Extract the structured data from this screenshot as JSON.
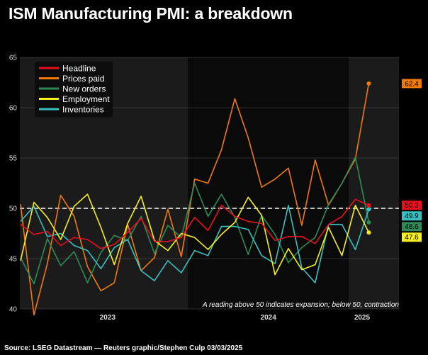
{
  "title": "ISM Manufacturing PMI: a breakdown",
  "source": "Source: LSEG Datastream — Reuters graphic/Stephen Culp 03/03/2025",
  "chart_data": {
    "type": "line",
    "title": "ISM Manufacturing PMI: a breakdown",
    "x": [
      "2022-12",
      "2023-01",
      "2023-02",
      "2023-03",
      "2023-04",
      "2023-05",
      "2023-06",
      "2023-07",
      "2023-08",
      "2023-09",
      "2023-10",
      "2023-11",
      "2023-12",
      "2024-01",
      "2024-02",
      "2024-03",
      "2024-04",
      "2024-05",
      "2024-06",
      "2024-07",
      "2024-08",
      "2024-09",
      "2024-10",
      "2024-11",
      "2024-12",
      "2025-01",
      "2025-02"
    ],
    "xtick_labels": [
      "2023",
      "2024",
      "2025"
    ],
    "ylim": [
      40,
      65
    ],
    "yticks": [
      40,
      45,
      50,
      55,
      60,
      65
    ],
    "reference_line": 50,
    "grid": true,
    "legend_position": "top-left",
    "annotation": "A reading above 50 indicates expansion; below 50, contraction",
    "series": [
      {
        "name": "Headline",
        "color": "#e8101e",
        "values": [
          48.4,
          47.4,
          47.7,
          46.3,
          47.1,
          46.9,
          46.0,
          46.4,
          47.6,
          49.0,
          46.7,
          46.7,
          47.1,
          49.1,
          47.8,
          50.3,
          49.2,
          48.7,
          48.5,
          46.8,
          47.2,
          47.2,
          46.5,
          48.4,
          49.2,
          50.9,
          50.3
        ]
      },
      {
        "name": "Prices paid",
        "color": "#f07a0a",
        "values": [
          50.4,
          39.4,
          44.5,
          51.3,
          49.2,
          44.2,
          41.8,
          42.6,
          48.4,
          43.8,
          45.1,
          49.9,
          45.2,
          52.9,
          52.5,
          55.8,
          60.9,
          57.0,
          52.1,
          52.9,
          54.0,
          48.3,
          54.8,
          50.3,
          52.5,
          54.9,
          62.4
        ]
      },
      {
        "name": "New orders",
        "color": "#2e8b57",
        "values": [
          45.1,
          42.5,
          47.0,
          44.3,
          45.7,
          42.6,
          45.6,
          47.3,
          46.8,
          49.2,
          45.5,
          48.3,
          47.1,
          52.5,
          49.2,
          51.4,
          49.1,
          45.4,
          49.3,
          47.4,
          44.6,
          46.1,
          47.1,
          50.4,
          52.5,
          55.1,
          48.6
        ]
      },
      {
        "name": "Employment",
        "color": "#f5f01e",
        "values": [
          44.8,
          50.6,
          49.1,
          46.9,
          50.2,
          51.4,
          48.1,
          44.4,
          48.5,
          51.2,
          46.8,
          45.8,
          47.5,
          47.1,
          45.9,
          47.4,
          48.6,
          51.1,
          49.3,
          43.4,
          46.0,
          43.9,
          44.4,
          48.1,
          45.3,
          50.3,
          47.6
        ]
      },
      {
        "name": "Inventories",
        "color": "#38c0c0",
        "values": [
          48.7,
          50.2,
          47.2,
          47.5,
          46.3,
          45.8,
          44.0,
          46.1,
          46.9,
          43.8,
          42.8,
          44.8,
          43.6,
          45.8,
          45.3,
          48.2,
          48.2,
          47.9,
          45.3,
          44.5,
          50.3,
          44.1,
          42.6,
          48.4,
          48.4,
          45.9,
          49.9
        ]
      }
    ],
    "end_labels": [
      {
        "series": "Prices paid",
        "text": "62.4",
        "value": 62.4
      },
      {
        "series": "Headline",
        "text": "50.3",
        "value": 50.3
      },
      {
        "series": "Inventories",
        "text": "49.9",
        "value": 49.9
      },
      {
        "series": "New orders",
        "text": "48.6",
        "value": 48.6
      },
      {
        "series": "Employment",
        "text": "47.6",
        "value": 47.6
      }
    ]
  }
}
